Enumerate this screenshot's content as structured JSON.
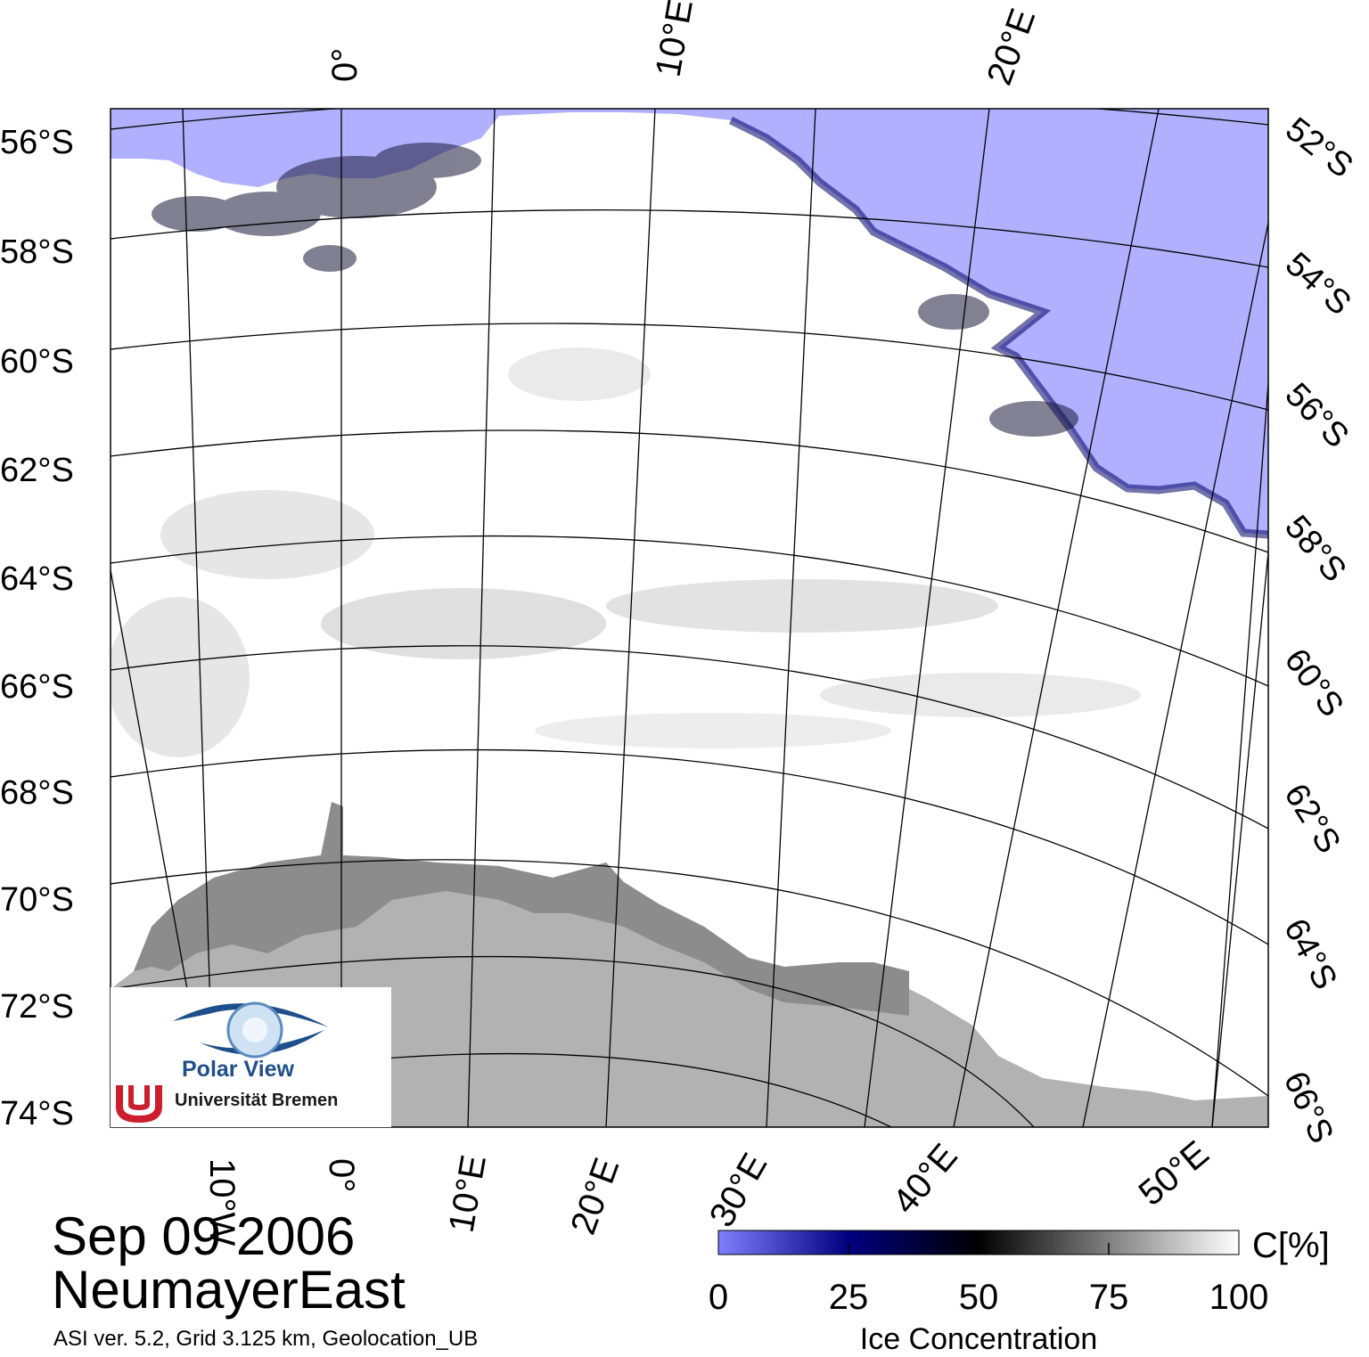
{
  "map": {
    "lat_labels_left": [
      "56°S",
      "58°S",
      "60°S",
      "62°S",
      "64°S",
      "66°S",
      "68°S",
      "70°S",
      "72°S",
      "74°S"
    ],
    "lat_labels_right": [
      "52°S",
      "54°S",
      "56°S",
      "58°S",
      "60°S",
      "62°S",
      "64°S",
      "66°S"
    ],
    "lon_labels_top": [
      "0°",
      "10°E",
      "20°E"
    ],
    "lon_labels_bottom": [
      "10°W",
      "0°",
      "10°E",
      "20°E",
      "30°E",
      "40°E",
      "50°E"
    ],
    "colors": {
      "open_water": "#b0b0ff",
      "land": "#b2b2b2",
      "ice_shelf": "#8c8c8c",
      "sea_ice": "#ffffff"
    }
  },
  "logo": {
    "line1": "Polar View",
    "line2": "Universität Bremen"
  },
  "footer": {
    "date": "Sep 09 2006",
    "region": "NeumayerEast",
    "meta": "ASI ver. 5.2,  Grid 3.125 km, Geolocation_UB"
  },
  "colorbar": {
    "ticks": [
      "0",
      "25",
      "50",
      "75",
      "100"
    ],
    "unit": "C[%]",
    "title": "Ice Concentration",
    "stops": [
      "#8080ff",
      "#000080",
      "#000000",
      "#808080",
      "#ffffff"
    ]
  }
}
